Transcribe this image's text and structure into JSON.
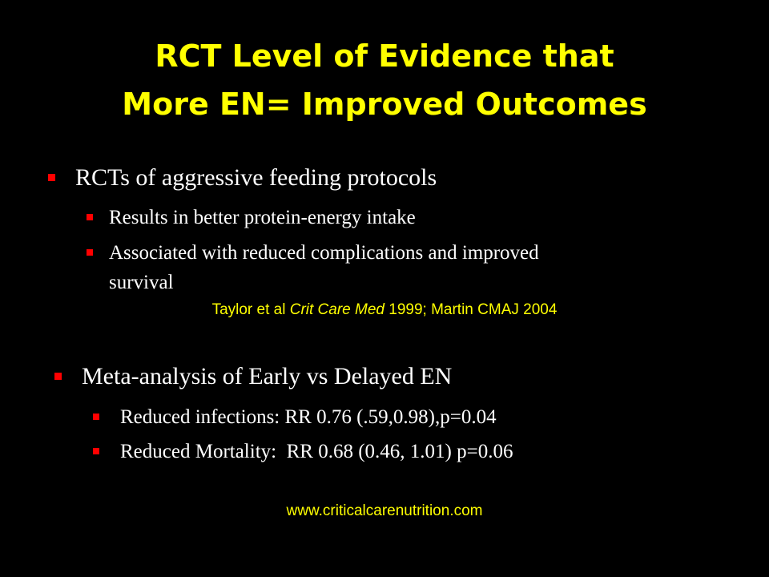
{
  "title": {
    "line1": "RCT Level of Evidence that",
    "line2": "More EN= Improved Outcomes"
  },
  "section1": {
    "heading": "RCTs of aggressive feeding protocols",
    "items": [
      "Results in better protein-energy intake",
      "Associated with reduced complications and improved",
      "survival"
    ]
  },
  "citation": {
    "part1": "Taylor et al ",
    "journal": "Crit Care Med",
    "part2": " 1999; Martin CMAJ 2004"
  },
  "section2": {
    "heading": "Meta-analysis of Early vs Delayed EN",
    "items": [
      "Reduced infections: RR 0.76 (.59,0.98),p=0.04",
      "Reduced Mortality:  RR 0.68 (0.46, 1.01) p=0.06"
    ]
  },
  "footer": {
    "url": "www.criticalcarenutrition.com"
  },
  "colors": {
    "background": "#000000",
    "title": "#FFFF00",
    "body_text": "#FFFFFF",
    "bullet": "#FF0000",
    "citation": "#FFFF00"
  },
  "icons": {
    "bullet": "square-bullet-icon"
  }
}
